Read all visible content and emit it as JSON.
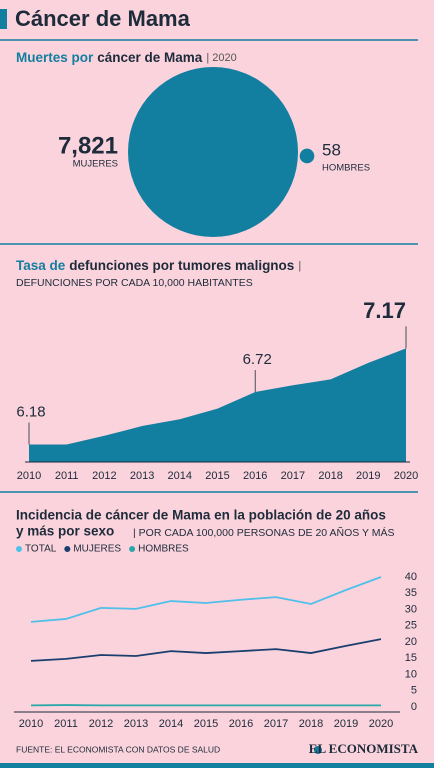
{
  "header": {
    "title": "Cáncer de Mama"
  },
  "chart_data": [
    {
      "type": "bubble",
      "title_parts": [
        "Muertes por",
        "cáncer de Mama",
        "| 2020"
      ],
      "categories": [
        "MUJERES",
        "HOMBRES"
      ],
      "values": [
        7821,
        58
      ],
      "value_labels": [
        "7,821",
        "58"
      ],
      "color": "#127ea0"
    },
    {
      "type": "area",
      "title_parts": [
        "Tasa de",
        "defunciones por tumores malignos",
        "|"
      ],
      "subtitle": "DEFUNCIONES POR CADA 10,000 HABITANTES",
      "x": [
        2010,
        2011,
        2012,
        2013,
        2014,
        2015,
        2016,
        2017,
        2018,
        2019,
        2020
      ],
      "values": [
        6.18,
        6.18,
        6.27,
        6.37,
        6.44,
        6.55,
        6.72,
        6.79,
        6.85,
        7.02,
        7.17
      ],
      "value_labels": [
        "6.18",
        null,
        null,
        null,
        null,
        null,
        "6.72",
        null,
        null,
        null,
        "7.17"
      ],
      "xlim": [
        2010,
        2020
      ],
      "ylim": [
        6,
        7.4
      ],
      "color": "#127ea0"
    },
    {
      "type": "line",
      "title": [
        "Incidencia de cáncer de Mama en la población de 20 años",
        "y más por sexo"
      ],
      "subtitle": "| POR CADA 100,000 PERSONAS DE 20 AÑOS Y MÁS",
      "x": [
        2010,
        2011,
        2012,
        2013,
        2014,
        2015,
        2016,
        2017,
        2018,
        2019,
        2020
      ],
      "xlim": [
        2010,
        2020
      ],
      "ylim": [
        0,
        40
      ],
      "yticks": [
        0,
        5,
        10,
        15,
        20,
        25,
        30,
        35,
        40
      ],
      "series": [
        {
          "name": "TOTAL",
          "color": "#4fc0ea",
          "values": [
            26.2,
            27.1,
            30.5,
            30.2,
            32.6,
            32.0,
            33.0,
            33.8,
            31.7,
            36.0,
            40.0
          ]
        },
        {
          "name": "MUJERES",
          "color": "#1a3f6e",
          "values": [
            14.2,
            14.8,
            16.0,
            15.7,
            17.2,
            16.6,
            17.2,
            17.8,
            16.6,
            18.8,
            20.9
          ]
        },
        {
          "name": "HOMBRES",
          "color": "#2aa7a9",
          "values": [
            0.5,
            0.6,
            0.5,
            0.5,
            0.5,
            0.5,
            0.5,
            0.5,
            0.5,
            0.5,
            0.5
          ]
        }
      ]
    }
  ],
  "footer": {
    "source": "FUENTE: EL ECONOMISTA CON DATOS DE SALUD",
    "logo": "EL ECONOMISTA"
  }
}
